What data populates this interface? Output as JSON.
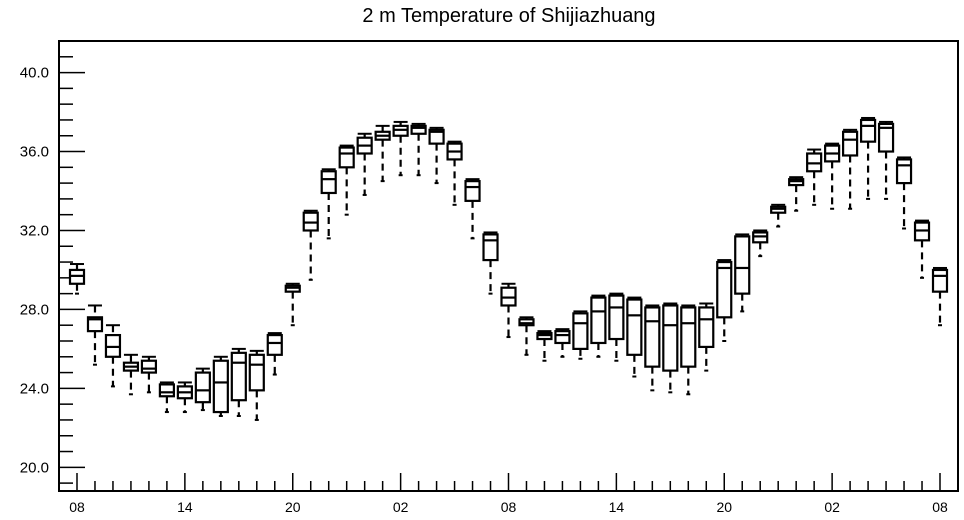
{
  "chart_data": {
    "type": "box",
    "title": "2 m Temperature of Shijiazhuang",
    "xlabel": "",
    "ylabel": "",
    "ylim": [
      18.8,
      41.6
    ],
    "y_ticks": [
      20.0,
      24.0,
      28.0,
      32.0,
      36.0,
      40.0
    ],
    "y_tick_labels": [
      "20.0",
      "24.0",
      "28.0",
      "32.0",
      "36.0",
      "40.0"
    ],
    "x_tick_labels": [
      "08",
      "14",
      "20",
      "02",
      "08",
      "14",
      "20",
      "02",
      "08"
    ],
    "x_tick_hours": [
      0,
      6,
      12,
      18,
      24,
      30,
      36,
      42,
      48
    ],
    "grid": false,
    "boxes": [
      {
        "hour": 0,
        "min": 28.8,
        "q1": 29.3,
        "median": 29.7,
        "q3": 30.0,
        "max": 30.3
      },
      {
        "hour": 1,
        "min": 25.2,
        "q1": 26.9,
        "median": 27.5,
        "q3": 27.6,
        "max": 28.2
      },
      {
        "hour": 2,
        "min": 24.1,
        "q1": 25.6,
        "median": 26.1,
        "q3": 26.7,
        "max": 27.2
      },
      {
        "hour": 3,
        "min": 23.7,
        "q1": 24.9,
        "median": 25.1,
        "q3": 25.3,
        "max": 25.7
      },
      {
        "hour": 4,
        "min": 23.8,
        "q1": 24.8,
        "median": 25.0,
        "q3": 25.4,
        "max": 25.6
      },
      {
        "hour": 5,
        "min": 22.8,
        "q1": 23.6,
        "median": 23.8,
        "q3": 24.2,
        "max": 24.3
      },
      {
        "hour": 6,
        "min": 22.8,
        "q1": 23.5,
        "median": 23.8,
        "q3": 24.1,
        "max": 24.3
      },
      {
        "hour": 7,
        "min": 22.9,
        "q1": 23.3,
        "median": 23.9,
        "q3": 24.8,
        "max": 25.0
      },
      {
        "hour": 8,
        "min": 22.6,
        "q1": 22.8,
        "median": 24.3,
        "q3": 25.4,
        "max": 25.6
      },
      {
        "hour": 9,
        "min": 22.6,
        "q1": 23.4,
        "median": 25.3,
        "q3": 25.8,
        "max": 26.0
      },
      {
        "hour": 10,
        "min": 22.4,
        "q1": 23.9,
        "median": 25.2,
        "q3": 25.7,
        "max": 25.9
      },
      {
        "hour": 11,
        "min": 24.7,
        "q1": 25.7,
        "median": 26.3,
        "q3": 26.7,
        "max": 26.8
      },
      {
        "hour": 12,
        "min": 27.2,
        "q1": 28.9,
        "median": 29.1,
        "q3": 29.2,
        "max": 29.3
      },
      {
        "hour": 13,
        "min": 29.5,
        "q1": 32.0,
        "median": 32.4,
        "q3": 32.9,
        "max": 33.0
      },
      {
        "hour": 14,
        "min": 31.6,
        "q1": 33.9,
        "median": 34.6,
        "q3": 35.0,
        "max": 35.1
      },
      {
        "hour": 15,
        "min": 32.8,
        "q1": 35.2,
        "median": 35.9,
        "q3": 36.2,
        "max": 36.3
      },
      {
        "hour": 16,
        "min": 33.8,
        "q1": 35.9,
        "median": 36.3,
        "q3": 36.7,
        "max": 36.9
      },
      {
        "hour": 17,
        "min": 34.5,
        "q1": 36.6,
        "median": 36.8,
        "q3": 37.0,
        "max": 37.3
      },
      {
        "hour": 18,
        "min": 34.8,
        "q1": 36.8,
        "median": 37.1,
        "q3": 37.3,
        "max": 37.5
      },
      {
        "hour": 19,
        "min": 34.8,
        "q1": 36.9,
        "median": 37.2,
        "q3": 37.3,
        "max": 37.4
      },
      {
        "hour": 20,
        "min": 34.4,
        "q1": 36.4,
        "median": 37.0,
        "q3": 37.1,
        "max": 37.2
      },
      {
        "hour": 21,
        "min": 33.3,
        "q1": 35.6,
        "median": 36.0,
        "q3": 36.4,
        "max": 36.5
      },
      {
        "hour": 22,
        "min": 31.6,
        "q1": 33.5,
        "median": 34.2,
        "q3": 34.5,
        "max": 34.6
      },
      {
        "hour": 23,
        "min": 28.8,
        "q1": 30.5,
        "median": 31.5,
        "q3": 31.8,
        "max": 31.9
      },
      {
        "hour": 24,
        "min": 26.6,
        "q1": 28.2,
        "median": 28.6,
        "q3": 29.1,
        "max": 29.3
      },
      {
        "hour": 25,
        "min": 25.7,
        "q1": 27.2,
        "median": 27.3,
        "q3": 27.5,
        "max": 27.6
      },
      {
        "hour": 26,
        "min": 25.4,
        "q1": 26.5,
        "median": 26.7,
        "q3": 26.8,
        "max": 26.9
      },
      {
        "hour": 27,
        "min": 25.6,
        "q1": 26.3,
        "median": 26.7,
        "q3": 26.9,
        "max": 27.0
      },
      {
        "hour": 28,
        "min": 25.5,
        "q1": 26.0,
        "median": 27.3,
        "q3": 27.8,
        "max": 27.9
      },
      {
        "hour": 29,
        "min": 25.6,
        "q1": 26.3,
        "median": 27.9,
        "q3": 28.6,
        "max": 28.7
      },
      {
        "hour": 30,
        "min": 25.4,
        "q1": 26.5,
        "median": 28.1,
        "q3": 28.7,
        "max": 28.8
      },
      {
        "hour": 31,
        "min": 24.6,
        "q1": 25.7,
        "median": 27.7,
        "q3": 28.5,
        "max": 28.6
      },
      {
        "hour": 32,
        "min": 23.9,
        "q1": 25.1,
        "median": 27.4,
        "q3": 28.1,
        "max": 28.2
      },
      {
        "hour": 33,
        "min": 23.8,
        "q1": 24.9,
        "median": 27.2,
        "q3": 28.2,
        "max": 28.3
      },
      {
        "hour": 34,
        "min": 23.7,
        "q1": 25.1,
        "median": 27.3,
        "q3": 28.1,
        "max": 28.2
      },
      {
        "hour": 35,
        "min": 24.9,
        "q1": 26.1,
        "median": 27.5,
        "q3": 28.1,
        "max": 28.3
      },
      {
        "hour": 36,
        "min": 26.4,
        "q1": 27.6,
        "median": 30.1,
        "q3": 30.4,
        "max": 30.5
      },
      {
        "hour": 37,
        "min": 27.9,
        "q1": 28.8,
        "median": 30.1,
        "q3": 31.7,
        "max": 31.8
      },
      {
        "hour": 38,
        "min": 30.7,
        "q1": 31.4,
        "median": 31.7,
        "q3": 31.9,
        "max": 32.0
      },
      {
        "hour": 39,
        "min": 32.2,
        "q1": 32.9,
        "median": 33.1,
        "q3": 33.2,
        "max": 33.3
      },
      {
        "hour": 40,
        "min": 33.0,
        "q1": 34.3,
        "median": 34.5,
        "q3": 34.6,
        "max": 34.7
      },
      {
        "hour": 41,
        "min": 33.3,
        "q1": 35.0,
        "median": 35.4,
        "q3": 35.9,
        "max": 36.1
      },
      {
        "hour": 42,
        "min": 33.1,
        "q1": 35.5,
        "median": 35.9,
        "q3": 36.3,
        "max": 36.4
      },
      {
        "hour": 43,
        "min": 33.1,
        "q1": 35.8,
        "median": 36.6,
        "q3": 37.0,
        "max": 37.1
      },
      {
        "hour": 44,
        "min": 33.6,
        "q1": 36.5,
        "median": 37.3,
        "q3": 37.6,
        "max": 37.7
      },
      {
        "hour": 45,
        "min": 33.6,
        "q1": 36.0,
        "median": 37.2,
        "q3": 37.4,
        "max": 37.5
      },
      {
        "hour": 46,
        "min": 32.1,
        "q1": 34.4,
        "median": 35.3,
        "q3": 35.6,
        "max": 35.7
      },
      {
        "hour": 47,
        "min": 29.6,
        "q1": 31.5,
        "median": 32.0,
        "q3": 32.4,
        "max": 32.5
      },
      {
        "hour": 48,
        "min": 27.2,
        "q1": 28.9,
        "median": 29.7,
        "q3": 30.0,
        "max": 30.1
      }
    ]
  }
}
